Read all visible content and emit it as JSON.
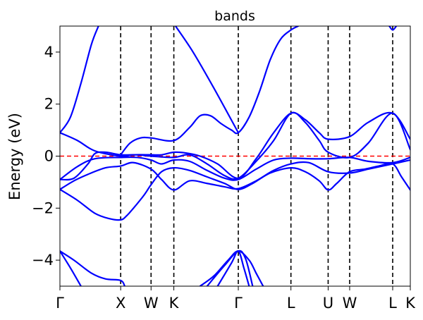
{
  "chart_data": {
    "type": "line",
    "title": "bands",
    "xlabel": "",
    "ylabel": "Energy (eV)",
    "ylim": [
      -5,
      5
    ],
    "xlim": [
      0,
      1
    ],
    "y_ticks": [
      -4,
      -2,
      0,
      2,
      4
    ],
    "y_tick_labels": [
      "−4",
      "−2",
      "0",
      "2",
      "4"
    ],
    "k_points": [
      {
        "label": "Γ",
        "x": 0.0
      },
      {
        "label": "X",
        "x": 0.1734
      },
      {
        "label": "W",
        "x": 0.2601
      },
      {
        "label": "K",
        "x": 0.3251
      },
      {
        "label": "Γ",
        "x": 0.5091
      },
      {
        "label": "L",
        "x": 0.6593
      },
      {
        "label": "U",
        "x": 0.7655
      },
      {
        "label": "W",
        "x": 0.8269
      },
      {
        "label": "L",
        "x": 0.9497
      },
      {
        "label": "K",
        "x": 1.0
      }
    ],
    "fermi_level": 0,
    "grid": false,
    "band_color": "#0000ff",
    "fermi_color": "#ff0000",
    "kline_color": "#000000",
    "series": [
      {
        "points": [
          [
            0.0,
            -3.65
          ],
          [
            0.04,
            -4.0
          ],
          [
            0.09,
            -4.5
          ],
          [
            0.13,
            -4.72
          ],
          [
            0.1734,
            -4.78
          ],
          [
            0.185,
            -5.0
          ]
        ]
      },
      {
        "points": [
          [
            0.0,
            -3.65
          ],
          [
            0.03,
            -4.3
          ],
          [
            0.06,
            -5.0
          ]
        ]
      },
      {
        "points": [
          [
            0.0,
            -1.28
          ],
          [
            0.05,
            -1.7
          ],
          [
            0.1,
            -2.2
          ],
          [
            0.14,
            -2.4
          ],
          [
            0.1734,
            -2.45
          ],
          [
            0.19,
            -2.3
          ],
          [
            0.21,
            -2.0
          ],
          [
            0.24,
            -1.5
          ],
          [
            0.2601,
            -1.1
          ],
          [
            0.29,
            -0.6
          ],
          [
            0.3251,
            -0.45
          ],
          [
            0.37,
            -0.55
          ],
          [
            0.42,
            -0.8
          ],
          [
            0.47,
            -1.05
          ],
          [
            0.5091,
            -1.28
          ],
          [
            0.55,
            -1.05
          ],
          [
            0.6,
            -0.65
          ],
          [
            0.6593,
            -0.45
          ],
          [
            0.7,
            -0.6
          ],
          [
            0.74,
            -0.95
          ],
          [
            0.7655,
            -1.3
          ],
          [
            0.79,
            -1.05
          ],
          [
            0.8269,
            -0.6
          ],
          [
            0.87,
            -0.5
          ],
          [
            0.91,
            -0.38
          ],
          [
            0.9497,
            -0.3
          ],
          [
            0.975,
            -0.8
          ],
          [
            1.0,
            -1.3
          ]
        ]
      },
      {
        "points": [
          [
            0.0,
            -1.28
          ],
          [
            0.04,
            -0.95
          ],
          [
            0.08,
            -0.7
          ],
          [
            0.13,
            -0.45
          ],
          [
            0.1734,
            -0.38
          ],
          [
            0.21,
            -0.25
          ],
          [
            0.2601,
            -0.5
          ],
          [
            0.29,
            -0.9
          ],
          [
            0.3251,
            -1.3
          ],
          [
            0.37,
            -0.95
          ],
          [
            0.42,
            -1.05
          ],
          [
            0.47,
            -1.18
          ],
          [
            0.5091,
            -1.25
          ],
          [
            0.56,
            -0.95
          ],
          [
            0.61,
            -0.55
          ],
          [
            0.6593,
            -0.3
          ],
          [
            0.71,
            -0.25
          ],
          [
            0.7655,
            -0.6
          ],
          [
            0.8269,
            -0.65
          ],
          [
            0.88,
            -0.5
          ],
          [
            0.9497,
            -0.3
          ],
          [
            1.0,
            -0.15
          ]
        ]
      },
      {
        "points": [
          [
            0.0,
            -0.9
          ],
          [
            0.05,
            -0.4
          ],
          [
            0.1,
            -0.1
          ],
          [
            0.1734,
            -0.05
          ],
          [
            0.22,
            -0.05
          ],
          [
            0.2601,
            -0.15
          ],
          [
            0.29,
            -0.3
          ],
          [
            0.3251,
            -0.15
          ],
          [
            0.37,
            -0.2
          ],
          [
            0.42,
            -0.55
          ],
          [
            0.47,
            -0.85
          ],
          [
            0.5091,
            -0.9
          ],
          [
            0.56,
            -0.5
          ],
          [
            0.61,
            -0.15
          ],
          [
            0.6593,
            -0.08
          ],
          [
            0.71,
            -0.1
          ],
          [
            0.7655,
            -0.1
          ],
          [
            0.8269,
            -0.05
          ],
          [
            0.88,
            -0.2
          ],
          [
            0.9497,
            -0.25
          ],
          [
            1.0,
            -0.05
          ]
        ]
      },
      {
        "points": [
          [
            0.0,
            -0.9
          ],
          [
            0.04,
            -0.85
          ],
          [
            0.08,
            -0.3
          ],
          [
            0.1,
            0.1
          ],
          [
            0.13,
            0.15
          ],
          [
            0.1734,
            0.05
          ],
          [
            0.22,
            0.05
          ],
          [
            0.2601,
            0.0
          ],
          [
            0.3251,
            -0.05
          ],
          [
            0.37,
            0.05
          ],
          [
            0.42,
            -0.3
          ],
          [
            0.47,
            -0.75
          ],
          [
            0.5091,
            -0.85
          ],
          [
            0.56,
            -0.2
          ],
          [
            0.61,
            0.6
          ],
          [
            0.6593,
            1.65
          ],
          [
            0.7,
            1.3
          ],
          [
            0.74,
            0.6
          ],
          [
            0.7655,
            0.15
          ],
          [
            0.8269,
            -0.05
          ],
          [
            0.88,
            0.5
          ],
          [
            0.9497,
            1.65
          ],
          [
            1.0,
            0.25
          ]
        ]
      },
      {
        "points": [
          [
            0.0,
            0.9
          ],
          [
            0.05,
            0.6
          ],
          [
            0.1,
            0.2
          ],
          [
            0.1734,
            0.0
          ],
          [
            0.21,
            0.05
          ],
          [
            0.2601,
            0.05
          ],
          [
            0.29,
            0.05
          ],
          [
            0.3251,
            0.15
          ],
          [
            0.36,
            0.12
          ],
          [
            0.4,
            0.0
          ],
          [
            0.45,
            -0.3
          ],
          [
            0.5091,
            -0.85
          ],
          [
            0.56,
            -0.1
          ],
          [
            0.61,
            0.9
          ],
          [
            0.6593,
            1.65
          ],
          [
            0.7,
            1.4
          ],
          [
            0.74,
            0.9
          ],
          [
            0.7655,
            0.65
          ],
          [
            0.8269,
            0.75
          ],
          [
            0.88,
            1.3
          ],
          [
            0.9497,
            1.65
          ],
          [
            1.0,
            0.65
          ]
        ]
      },
      {
        "points": [
          [
            0.1734,
            0.05
          ],
          [
            0.2,
            0.5
          ],
          [
            0.23,
            0.7
          ],
          [
            0.2601,
            0.7
          ],
          [
            0.3251,
            0.6
          ],
          [
            0.37,
            1.1
          ],
          [
            0.4,
            1.55
          ],
          [
            0.43,
            1.55
          ],
          [
            0.46,
            1.25
          ],
          [
            0.49,
            1.0
          ],
          [
            0.5091,
            0.9
          ],
          [
            0.54,
            1.5
          ],
          [
            0.57,
            2.5
          ],
          [
            0.6,
            3.7
          ],
          [
            0.63,
            4.5
          ],
          [
            0.6593,
            4.85
          ],
          [
            0.68,
            5.0
          ]
        ]
      },
      {
        "points": [
          [
            0.0,
            0.9
          ],
          [
            0.03,
            1.5
          ],
          [
            0.06,
            2.8
          ],
          [
            0.09,
            4.3
          ],
          [
            0.11,
            5.0
          ]
        ]
      },
      {
        "points": [
          [
            0.33,
            5.0
          ],
          [
            0.38,
            4.0
          ],
          [
            0.44,
            2.6
          ],
          [
            0.5091,
            0.9
          ]
        ]
      },
      {
        "points": [
          [
            0.94,
            5.0
          ],
          [
            0.9497,
            4.85
          ],
          [
            0.96,
            5.0
          ]
        ]
      },
      {
        "points": [
          [
            0.4,
            -5.0
          ],
          [
            0.44,
            -4.6
          ],
          [
            0.48,
            -4.0
          ],
          [
            0.5091,
            -3.65
          ],
          [
            0.54,
            -4.0
          ],
          [
            0.56,
            -4.5
          ],
          [
            0.58,
            -5.0
          ]
        ]
      },
      {
        "points": [
          [
            0.42,
            -5.0
          ],
          [
            0.47,
            -4.2
          ],
          [
            0.5091,
            -3.65
          ],
          [
            0.53,
            -3.95
          ],
          [
            0.55,
            -5.0
          ]
        ]
      },
      {
        "points": [
          [
            0.45,
            -5.0
          ],
          [
            0.49,
            -4.1
          ],
          [
            0.5091,
            -3.65
          ],
          [
            0.525,
            -4.3
          ],
          [
            0.54,
            -5.0
          ]
        ]
      }
    ]
  }
}
